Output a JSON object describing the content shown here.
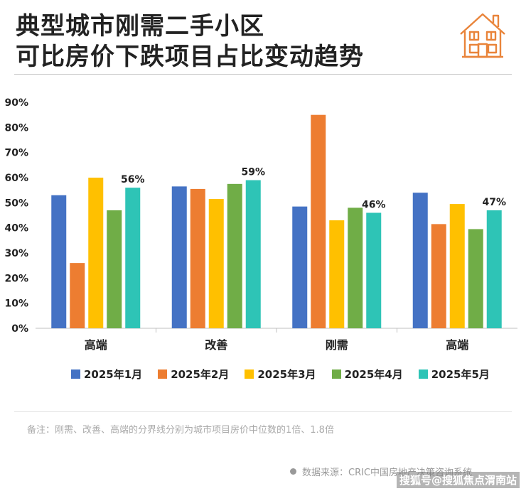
{
  "header": {
    "title_line1": "典型城市刚需二手小区",
    "title_line2": "可比房价下跌项目占比变动趋势",
    "icon": "house-icon",
    "icon_color": "#E9843A"
  },
  "chart_data": {
    "type": "bar",
    "title": "典型城市刚需二手小区可比房价下跌项目占比变动趋势",
    "categories": [
      "高端",
      "改善",
      "刚需",
      "高端"
    ],
    "series": [
      {
        "name": "2025年1月",
        "color": "#4472C4",
        "values": [
          53,
          56.5,
          48.5,
          54
        ]
      },
      {
        "name": "2025年2月",
        "color": "#ED7D31",
        "values": [
          26,
          55.5,
          85,
          41.5
        ]
      },
      {
        "name": "2025年3月",
        "color": "#FFC000",
        "values": [
          60,
          51.5,
          43,
          49.5
        ]
      },
      {
        "name": "2025年4月",
        "color": "#70AD47",
        "values": [
          47,
          57.5,
          48,
          39.5
        ]
      },
      {
        "name": "2025年5月",
        "color": "#2EC4B6",
        "values": [
          56,
          59,
          46,
          47
        ]
      }
    ],
    "data_labels": [
      "56%",
      "59%",
      "46%",
      "47%"
    ],
    "y_ticks": [
      "0%",
      "10%",
      "20%",
      "30%",
      "40%",
      "50%",
      "60%",
      "70%",
      "80%",
      "90%"
    ],
    "ylim": [
      0,
      90
    ],
    "xlabel": "",
    "ylabel": ""
  },
  "legend": [
    {
      "label": "2025年1月",
      "color": "#4472C4"
    },
    {
      "label": "2025年2月",
      "color": "#ED7D31"
    },
    {
      "label": "2025年3月",
      "color": "#FFC000"
    },
    {
      "label": "2025年4月",
      "color": "#70AD47"
    },
    {
      "label": "2025年5月",
      "color": "#2EC4B6"
    }
  ],
  "note": "备注：刚需、改善、高端的分界线分别为城市项目房价中位数的1倍、1.8倍",
  "source": "数据来源：CRIC中国房地产决策咨询系统",
  "watermark": "搜狐号@搜狐焦点渭南站"
}
